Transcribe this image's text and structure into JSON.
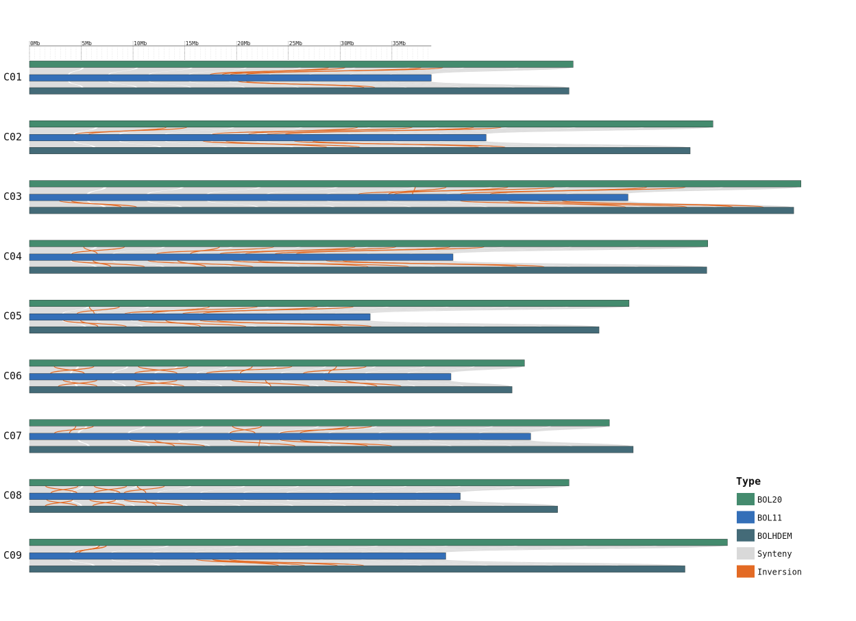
{
  "chart_data": {
    "type": "synteny",
    "unit": "Mb",
    "scale_ticks": [
      {
        "value": 0,
        "label": "0Mb"
      },
      {
        "value": 5,
        "label": "5Mb"
      },
      {
        "value": 10,
        "label": "10Mb"
      },
      {
        "value": 15,
        "label": "15Mb"
      },
      {
        "value": 20,
        "label": "20Mb"
      },
      {
        "value": 25,
        "label": "25Mb"
      },
      {
        "value": 30,
        "label": "30Mb"
      },
      {
        "value": 35,
        "label": "35Mb"
      }
    ],
    "scale_max": 38.8,
    "colors": {
      "BOL20": "#448b6e",
      "BOL11": "#346fb8",
      "BOLHDEM": "#446b78",
      "Synteny": "#d9d9d9",
      "Inversion": "#e36a24"
    },
    "chromosomes": [
      {
        "name": "C01",
        "BOL20": 52.5,
        "BOL11": 38.8,
        "BOLHDEM": 52.1,
        "inversions": [
          [
            0.55,
            0.45,
            0.03
          ],
          [
            0.72,
            0.5,
            0.04
          ],
          [
            0.52,
            0.62,
            0.02
          ]
        ]
      },
      {
        "name": "C02",
        "BOL20": 66.0,
        "BOL11": 44.1,
        "BOLHDEM": 63.8,
        "inversions": [
          [
            0.2,
            0.1,
            0.03
          ],
          [
            0.48,
            0.4,
            0.08
          ],
          [
            0.65,
            0.52,
            0.04
          ],
          [
            0.38,
            0.45,
            0.05
          ],
          [
            0.58,
            0.68,
            0.04
          ]
        ]
      },
      {
        "name": "C03",
        "BOL20": 74.5,
        "BOL11": 57.8,
        "BOLHDEM": 73.8,
        "inversions": [
          [
            0.62,
            0.55,
            0.06
          ],
          [
            0.8,
            0.72,
            0.05
          ],
          [
            0.5,
            0.6,
            0.04
          ],
          [
            0.72,
            0.78,
            0.08
          ],
          [
            0.85,
            0.92,
            0.04
          ],
          [
            0.05,
            0.12,
            0.02
          ]
        ]
      },
      {
        "name": "C04",
        "BOL20": 65.5,
        "BOL11": 40.9,
        "BOLHDEM": 65.4,
        "inversions": [
          [
            0.08,
            0.1,
            0.06
          ],
          [
            0.28,
            0.3,
            0.08
          ],
          [
            0.48,
            0.45,
            0.06
          ],
          [
            0.62,
            0.58,
            0.05
          ],
          [
            0.1,
            0.12,
            0.05
          ],
          [
            0.28,
            0.26,
            0.07
          ],
          [
            0.48,
            0.5,
            0.06
          ],
          [
            0.7,
            0.72,
            0.04
          ]
        ]
      },
      {
        "name": "C05",
        "BOL20": 57.9,
        "BOL11": 32.9,
        "BOLHDEM": 55.0,
        "inversions": [
          [
            0.1,
            0.14,
            0.05
          ],
          [
            0.3,
            0.28,
            0.08
          ],
          [
            0.48,
            0.45,
            0.06
          ],
          [
            0.1,
            0.12,
            0.05
          ],
          [
            0.32,
            0.3,
            0.08
          ],
          [
            0.5,
            0.55,
            0.05
          ]
        ]
      },
      {
        "name": "C06",
        "BOL20": 47.8,
        "BOL11": 40.7,
        "BOLHDEM": 46.6,
        "inversions": [
          [
            0.05,
            0.05,
            0.08
          ],
          [
            0.22,
            0.25,
            0.1
          ],
          [
            0.45,
            0.42,
            0.08
          ],
          [
            0.62,
            0.65,
            0.06
          ],
          [
            0.08,
            0.06,
            0.08
          ],
          [
            0.25,
            0.22,
            0.1
          ],
          [
            0.48,
            0.5,
            0.08
          ],
          [
            0.7,
            0.72,
            0.05
          ]
        ]
      },
      {
        "name": "C07",
        "BOL20": 56.0,
        "BOL11": 48.4,
        "BOLHDEM": 58.3,
        "inversions": [
          [
            0.35,
            0.4,
            0.05
          ],
          [
            0.55,
            0.5,
            0.04
          ],
          [
            0.08,
            0.05,
            0.03
          ],
          [
            0.2,
            0.24,
            0.05
          ],
          [
            0.4,
            0.38,
            0.06
          ],
          [
            0.5,
            0.56,
            0.04
          ]
        ]
      },
      {
        "name": "C08",
        "BOL20": 52.1,
        "BOL11": 41.6,
        "BOLHDEM": 51.0,
        "inversions": [
          [
            0.03,
            0.05,
            0.06
          ],
          [
            0.12,
            0.15,
            0.06
          ],
          [
            0.2,
            0.22,
            0.05
          ],
          [
            0.04,
            0.03,
            0.06
          ],
          [
            0.14,
            0.12,
            0.06
          ],
          [
            0.22,
            0.24,
            0.05
          ]
        ]
      },
      {
        "name": "C09",
        "BOL20": 67.4,
        "BOL11": 40.2,
        "BOLHDEM": 63.3,
        "inversions": [
          [
            0.1,
            0.11,
            0.01
          ],
          [
            0.1,
            0.11,
            0.01
          ],
          [
            0.4,
            0.38,
            0.04
          ],
          [
            0.44,
            0.47,
            0.04
          ]
        ]
      }
    ],
    "legend": {
      "title": "Type",
      "items": [
        {
          "label": "BOL20",
          "color": "#448b6e"
        },
        {
          "label": "BOL11",
          "color": "#346fb8"
        },
        {
          "label": "BOLHDEM",
          "color": "#446b78"
        },
        {
          "label": "Synteny",
          "color": "#d9d9d9"
        },
        {
          "label": "Inversion",
          "color": "#e36a24"
        }
      ]
    }
  }
}
